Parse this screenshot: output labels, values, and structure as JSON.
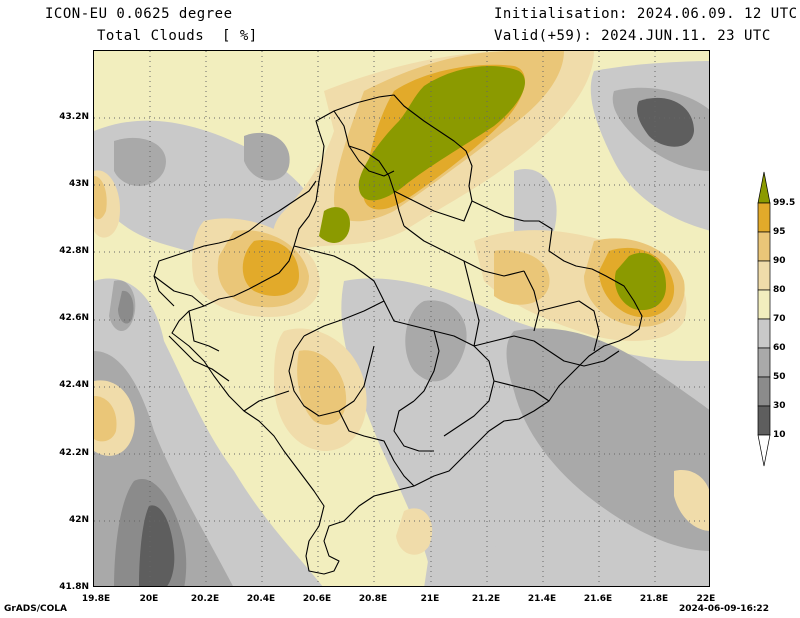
{
  "header": {
    "model": "ICON-EU 0.0625 degree",
    "field": "Total Clouds  [ %]",
    "init": "Initialisation: 2024.06.09. 12 UTC",
    "valid": "Valid(+59): 2024.JUN.11. 23 UTC"
  },
  "axes": {
    "x_ticks": [
      "19.8E",
      "20E",
      "20.2E",
      "20.4E",
      "20.6E",
      "20.8E",
      "21E",
      "21.2E",
      "21.4E",
      "21.6E",
      "21.8E",
      "22E"
    ],
    "y_ticks": [
      "43.2N",
      "43N",
      "42.8N",
      "42.6N",
      "42.4N",
      "42.2N",
      "42N",
      "41.8N"
    ]
  },
  "legend": {
    "labels": [
      "99.5",
      "95",
      "90",
      "80",
      "70",
      "60",
      "50",
      "30",
      "10"
    ],
    "colors": {
      "c99": "#8b9a00",
      "c95": "#e2aa2a",
      "c90": "#eac678",
      "c80": "#f0dcaa",
      "c70": "#f2eebe",
      "c60": "#c9c9c9",
      "c50": "#a9a9a9",
      "c30": "#8b8b8b",
      "c10": "#5e5e5e",
      "below": "#ffffff"
    }
  },
  "footer": {
    "left": "GrADS/COLA",
    "right": "2024-06-09-16:22"
  }
}
